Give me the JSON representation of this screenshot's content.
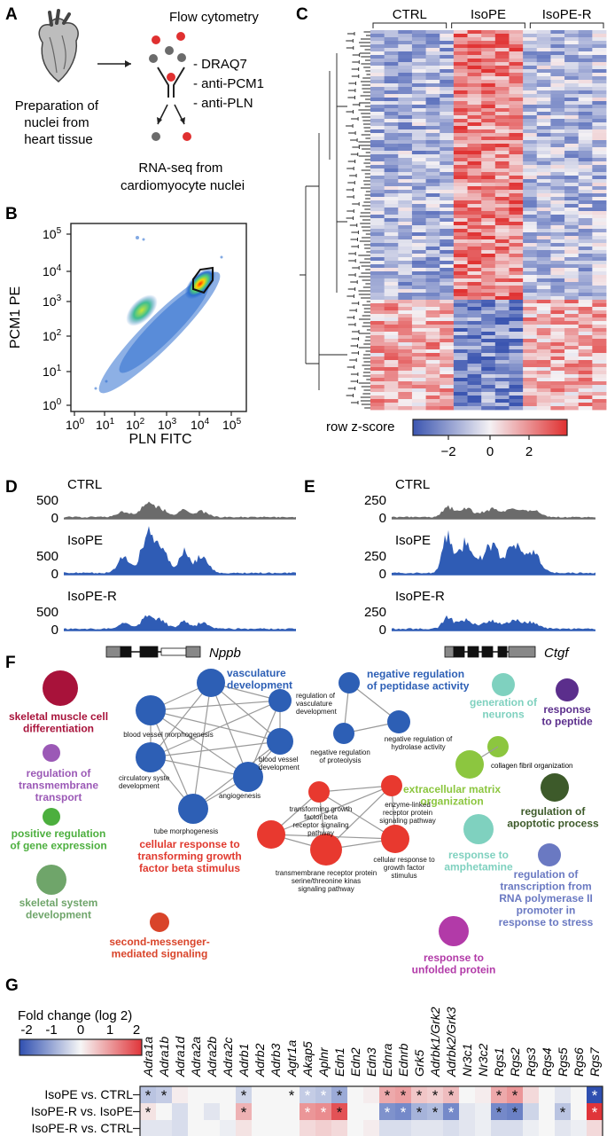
{
  "panels": {
    "a": "A",
    "b": "B",
    "c": "C",
    "d": "D",
    "e": "E",
    "f": "F",
    "g": "G"
  },
  "panel_a": {
    "title": "Flow cytometry",
    "prep": [
      "Preparation of",
      "nuclei from",
      "heart tissue"
    ],
    "stains": [
      "- DRAQ7",
      "- anti-PCM1",
      "- anti-PLN"
    ],
    "result": [
      "RNA-seq from",
      "cardiomyocyte nuclei"
    ]
  },
  "panel_b": {
    "ylabel": "PCM1 PE",
    "xlabel": "PLN FITC",
    "yticks": [
      {
        "b": "10",
        "e": "5"
      },
      {
        "b": "10",
        "e": "4"
      },
      {
        "b": "10",
        "e": "3"
      },
      {
        "b": "10",
        "e": "2"
      },
      {
        "b": "10",
        "e": "1"
      },
      {
        "b": "10",
        "e": "0"
      }
    ],
    "xticks": [
      {
        "b": "10",
        "e": "0"
      },
      {
        "b": "10",
        "e": "1"
      },
      {
        "b": "10",
        "e": "2"
      },
      {
        "b": "10",
        "e": "3"
      },
      {
        "b": "10",
        "e": "4"
      },
      {
        "b": "10",
        "e": "5"
      }
    ]
  },
  "panel_c": {
    "groups": [
      "CTRL",
      "IsoPE",
      "IsoPE-R"
    ],
    "legend_title": "row z-score",
    "legend_ticks": [
      "−2",
      "0",
      "2"
    ],
    "colors": {
      "low": "#3b55b0",
      "mid": "#f4f1f4",
      "high": "#e03030"
    }
  },
  "panel_d": {
    "tracks": [
      {
        "name": "CTRL",
        "ymax": "500",
        "ymin": "0",
        "color": "#6b6b6b"
      },
      {
        "name": "IsoPE",
        "ymax": "500",
        "ymin": "0",
        "color": "#2f5cb5"
      },
      {
        "name": "IsoPE-R",
        "ymax": "500",
        "ymin": "0",
        "color": "#2f5cb5"
      }
    ],
    "gene": "Nppb"
  },
  "panel_e": {
    "tracks": [
      {
        "name": "CTRL",
        "ymax": "250",
        "ymin": "0",
        "color": "#6b6b6b"
      },
      {
        "name": "IsoPE",
        "ymax": "250",
        "ymin": "0",
        "color": "#2f5cb5"
      },
      {
        "name": "IsoPE-R",
        "ymax": "250",
        "ymin": "0",
        "color": "#2f5cb5"
      }
    ],
    "gene": "Ctgf"
  },
  "panel_f": {
    "standalone": [
      {
        "lines": [
          "skeletal muscle cell",
          "differentiation"
        ],
        "color": "#a8123a"
      },
      {
        "lines": [
          "regulation of",
          "transmembrane",
          "transport"
        ],
        "color": "#9b59b6"
      },
      {
        "lines": [
          "positive regulation",
          "of gene expression"
        ],
        "color": "#4caf3e"
      },
      {
        "lines": [
          "skeletal system",
          "development"
        ],
        "color": "#6fa56a"
      },
      {
        "lines": [
          "second-messenger-",
          "mediated signaling"
        ],
        "color": "#d9442a"
      },
      {
        "lines": [
          "generation of",
          "neurons"
        ],
        "color": "#7fd1bf"
      },
      {
        "lines": [
          "response",
          "to peptide"
        ],
        "color": "#5b2e8c"
      },
      {
        "lines": [
          "extracellular matrix",
          "organization"
        ],
        "color": "#8cc63f"
      },
      {
        "lines": [
          "regulation of",
          "apoptotic process"
        ],
        "color": "#3d5a2a"
      },
      {
        "lines": [
          "response to",
          "amphetamine"
        ],
        "color": "#7fd1bf"
      },
      {
        "lines": [
          "regulation of",
          "transcription from",
          "RNA polymerase II",
          "promoter in",
          "response to stress"
        ],
        "color": "#6a79c2"
      },
      {
        "lines": [
          "response to",
          "unfolded protein"
        ],
        "color": "#b23aa8"
      }
    ],
    "vasc_cluster": {
      "title": [
        "vasculature",
        "development"
      ],
      "color": "#2d5fb5",
      "nodes": [
        [
          "regulation of",
          "vasculature",
          "development"
        ],
        [
          "blood vessel morphogenesis"
        ],
        [
          "blood vessel",
          "development"
        ],
        [
          "circulatory syste",
          "development"
        ],
        [
          "angiogenesis"
        ],
        [
          "tube morphogenesis"
        ]
      ]
    },
    "pep_cluster": {
      "title": [
        "negative regulation",
        "of peptidase activity"
      ],
      "color": "#2d5fb5",
      "nodes": [
        [
          "negative regulation",
          "of proteolysis"
        ],
        [
          "negative regulation of",
          "hydrolase activity"
        ]
      ]
    },
    "tgf_cluster": {
      "title": [
        "cellular response to",
        "transforming growth",
        "factor beta stimulus"
      ],
      "color": "#e8392f",
      "nodes": [
        [
          "transforming growth",
          "factor beta",
          "receptor signaling",
          "pathway"
        ],
        [
          "enzyme-linked",
          "receptor protein",
          "signaling pathway"
        ],
        [
          "transmembrane receptor protein",
          "serine/threonine kinas",
          "signaling pathway"
        ],
        [
          "cellular response to",
          "growth factor",
          "stimulus"
        ]
      ]
    },
    "collagen": {
      "label": "collagen fibril organization",
      "color": "#8cc63f"
    }
  },
  "panel_g": {
    "legend_title": "Fold change (log 2)",
    "legend_ticks": [
      "-2",
      "-1",
      "0",
      "1",
      "2"
    ],
    "genes": [
      "Adra1a",
      "Adra1b",
      "Adra1d",
      "Adra2a",
      "Adra2b",
      "Adra2c",
      "Adrb1",
      "Adrb2",
      "Adrb3",
      "Agtr1a",
      "Akap5",
      "Aplnr",
      "Edn1",
      "Edn2",
      "Edn3",
      "Ednra",
      "Ednrb",
      "Grk5",
      "Adrbk1/Grk2",
      "Adrbk2/Grk3",
      "Nr3c1",
      "Nr3c2",
      "Rgs1",
      "Rgs2",
      "Rgs3",
      "Rgs4",
      "Rgs5",
      "Rgs6",
      "Rgs7"
    ],
    "rows": [
      {
        "label": "IsoPE vs. CTRL",
        "values": [
          -0.6,
          -0.5,
          0.1,
          0,
          0,
          0,
          -0.4,
          0,
          0,
          0,
          -0.5,
          -0.6,
          -0.9,
          0,
          0.1,
          0.8,
          0.9,
          0.5,
          0.4,
          0.6,
          0,
          0.1,
          0.8,
          1.0,
          0.3,
          0,
          -0.2,
          0,
          -2.0
        ],
        "sig": [
          1,
          1,
          0,
          0,
          0,
          0,
          1,
          0,
          0,
          1,
          1,
          1,
          1,
          0,
          0,
          1,
          1,
          1,
          1,
          1,
          0,
          0,
          1,
          1,
          0,
          0,
          0,
          0,
          1
        ],
        "star_color": [
          "k",
          "k",
          "k",
          "k",
          "k",
          "k",
          "k",
          "k",
          "k",
          "k",
          "w",
          "w",
          "k",
          "k",
          "k",
          "k",
          "k",
          "k",
          "k",
          "k",
          "k",
          "k",
          "k",
          "k",
          "k",
          "k",
          "k",
          "k",
          "w"
        ]
      },
      {
        "label": "IsoPE-R vs. IsoPE",
        "values": [
          0.2,
          0,
          -0.3,
          0,
          -0.2,
          0,
          0.7,
          0,
          0,
          0,
          1.0,
          1.1,
          1.7,
          0,
          0,
          -1.2,
          -1.3,
          -0.8,
          -0.7,
          -1.3,
          -0.2,
          -0.1,
          -1.3,
          -1.4,
          -0.4,
          0,
          -0.6,
          0,
          2.0
        ],
        "sig": [
          1,
          0,
          0,
          0,
          0,
          0,
          1,
          0,
          0,
          0,
          1,
          1,
          1,
          0,
          0,
          1,
          1,
          1,
          1,
          1,
          0,
          0,
          1,
          1,
          0,
          0,
          1,
          0,
          1
        ],
        "star_color": [
          "k",
          "k",
          "k",
          "k",
          "k",
          "k",
          "k",
          "k",
          "k",
          "k",
          "w",
          "w",
          "k",
          "k",
          "k",
          "w",
          "w",
          "k",
          "k",
          "w",
          "k",
          "k",
          "k",
          "k",
          "k",
          "k",
          "k",
          "k",
          "w"
        ]
      },
      {
        "label": "IsoPE-R vs. CTRL",
        "values": [
          -0.2,
          -0.2,
          -0.3,
          0,
          0,
          -0.1,
          0.2,
          0,
          0,
          0,
          0.3,
          0.4,
          0.3,
          0,
          0.1,
          -0.3,
          -0.3,
          -0.2,
          -0.2,
          -0.3,
          -0.2,
          -0.1,
          -0.3,
          -0.3,
          -0.1,
          0,
          -0.2,
          -0.1,
          0.3
        ],
        "sig": [
          0,
          0,
          0,
          0,
          0,
          0,
          0,
          0,
          0,
          0,
          0,
          0,
          0,
          0,
          0,
          0,
          0,
          0,
          0,
          0,
          0,
          0,
          0,
          0,
          0,
          0,
          0,
          0,
          0
        ],
        "star_color": []
      }
    ],
    "star": "*"
  }
}
